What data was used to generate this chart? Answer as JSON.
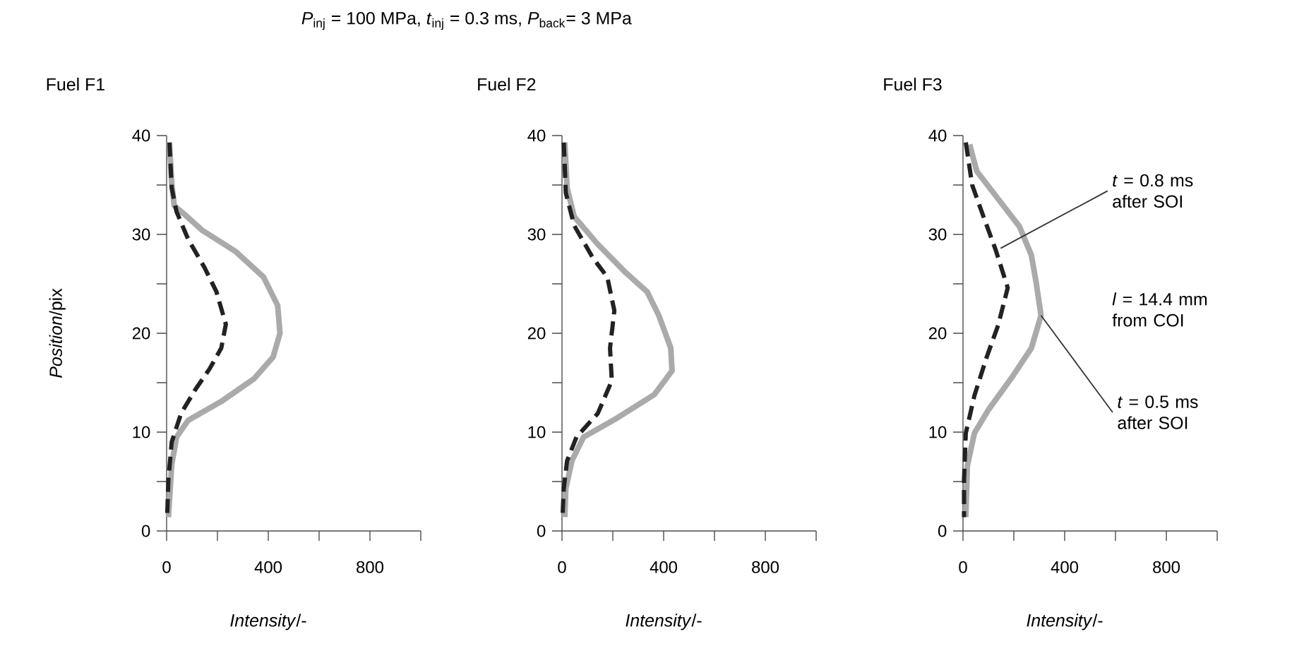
{
  "chart_data": [
    {
      "type": "line",
      "subtitle": "*P*$_{inj}$ = 100 MPa, *t*$_{inj}$ = 0.3 ms, *P*$_{back}$= 3 MPa",
      "title": "Fuel F1",
      "xlabel": "*Intensity*/-",
      "ylabel": "*Position*/pix",
      "xlim": [
        0,
        1000
      ],
      "ylim": [
        0,
        40
      ],
      "xticks": [
        0,
        {
          "value": 200,
          "label": null
        },
        400,
        {
          "value": 600,
          "label": null
        },
        800,
        {
          "value": 1000,
          "label": null
        }
      ],
      "yticks": [
        0,
        {
          "value": 5,
          "label": null
        },
        10,
        {
          "value": 15,
          "label": null
        },
        20,
        {
          "value": 25,
          "label": null
        },
        30,
        {
          "value": 35,
          "label": null
        },
        40
      ],
      "grid": false,
      "series": [
        {
          "color": "#aaaaaa",
          "line_style": "solid",
          "x": [
            11,
            20,
            30,
            67,
            141,
            270,
            381,
            437,
            446,
            419,
            344,
            215,
            85,
            39,
            20,
            7
          ],
          "values": [
            39.3,
            35.2,
            32.9,
            32.1,
            30.4,
            28.3,
            25.7,
            22.8,
            20,
            17.6,
            15.4,
            13.1,
            11.2,
            9.5,
            6.7,
            1.4
          ]
        },
        {
          "color": "#222222",
          "line_style": "dashed",
          "x": [
            11,
            20,
            39,
            85,
            150,
            196,
            233,
            215,
            169,
            113,
            57,
            20,
            7,
            2
          ],
          "values": [
            39.3,
            34.7,
            32.3,
            29.5,
            26.6,
            24.2,
            20.9,
            18.5,
            16.4,
            14.3,
            11.9,
            9,
            5.2,
            1.4
          ]
        }
      ]
    },
    {
      "type": "line",
      "title": "Fuel F2",
      "xlabel": "*Intensity*/-",
      "xlim": [
        0,
        1000
      ],
      "ylim": [
        0,
        40
      ],
      "xticks": [
        0,
        {
          "value": 200,
          "label": null
        },
        400,
        {
          "value": 600,
          "label": null
        },
        800,
        {
          "value": 1000,
          "label": null
        }
      ],
      "yticks": [
        0,
        {
          "value": 5,
          "label": null
        },
        10,
        {
          "value": 15,
          "label": null
        },
        20,
        {
          "value": 25,
          "label": null
        },
        30,
        {
          "value": 35,
          "label": null
        },
        40
      ],
      "grid": false,
      "series": [
        {
          "color": "#aaaaaa",
          "line_style": "solid",
          "x": [
            11,
            20,
            48,
            141,
            252,
            335,
            381,
            428,
            433,
            363,
            215,
            85,
            39,
            15,
            11
          ],
          "values": [
            39.3,
            34.7,
            31.8,
            29,
            26.1,
            24.2,
            21.8,
            18.5,
            16.2,
            13.8,
            11.4,
            9.5,
            7.1,
            4.3,
            1.4
          ]
        },
        {
          "color": "#222222",
          "line_style": "dashed",
          "x": [
            7,
            15,
            48,
            122,
            178,
            206,
            189,
            196,
            141,
            57,
            20,
            7,
            2
          ],
          "values": [
            39.3,
            34.2,
            30.9,
            27.6,
            25.7,
            22.3,
            18.5,
            15.2,
            11.9,
            9.5,
            7.1,
            4.3,
            1.4
          ]
        }
      ]
    },
    {
      "type": "line",
      "title": "Fuel F3",
      "xlabel": "*Intensity*/-",
      "xlim": [
        0,
        1000
      ],
      "ylim": [
        0,
        40
      ],
      "xticks": [
        0,
        {
          "value": 200,
          "label": null
        },
        400,
        {
          "value": 600,
          "label": null
        },
        800,
        {
          "value": 1000,
          "label": null
        }
      ],
      "yticks": [
        0,
        {
          "value": 5,
          "label": null
        },
        10,
        {
          "value": 15,
          "label": null
        },
        20,
        {
          "value": 25,
          "label": null
        },
        30,
        {
          "value": 35,
          "label": null
        },
        40
      ],
      "grid": false,
      "annotations": [
        {
          "text": "*t* = 0.8 ms after SOI",
          "x": 148,
          "y": 28.6
        },
        "*l* = 14.4 mm from COI",
        {
          "text": "*t* = 0.5 ms after SOI",
          "x": 307,
          "y": 21.8
        }
      ],
      "series": [
        {
          "color": "#aaaaaa",
          "line_style": "solid",
          "x": [
            26,
            54,
            138,
            222,
            269,
            288,
            307,
            269,
            194,
            101,
            45,
            17,
            11
          ],
          "values": [
            39.1,
            36.4,
            33.6,
            30.8,
            27.9,
            25.1,
            21.8,
            18.5,
            15.6,
            12.3,
            9.9,
            6.6,
            1.4
          ]
        },
        {
          "color": "#222222",
          "line_style": "dashed",
          "x": [
            11,
            36,
            82,
            129,
            176,
            138,
            92,
            45,
            11,
            4,
            4
          ],
          "values": [
            39.3,
            35,
            31.7,
            28.4,
            24.6,
            20.8,
            17.5,
            13.7,
            9.9,
            5.2,
            1.4
          ]
        }
      ]
    }
  ]
}
